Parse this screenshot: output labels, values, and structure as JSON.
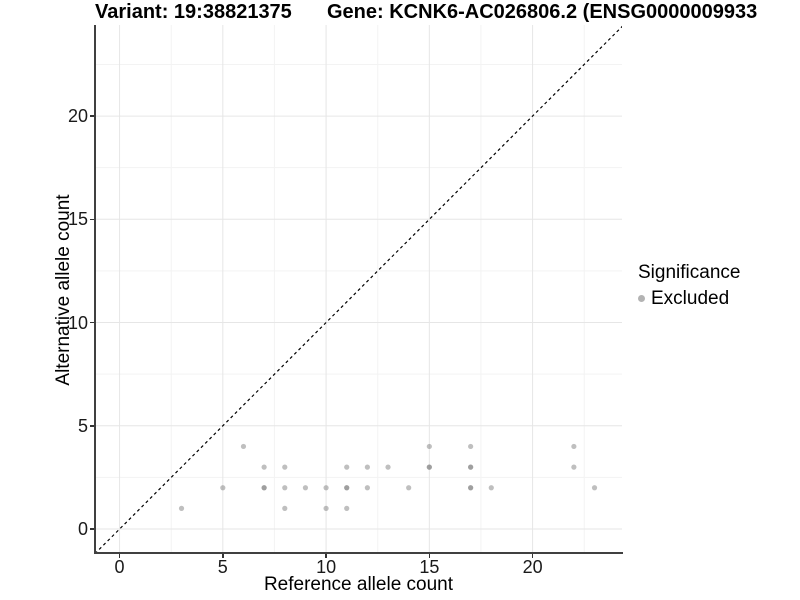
{
  "header": {
    "variant_title": "Variant: 19:38821375",
    "gene_title": "Gene: KCNK6-AC026806.2 (ENSG0000009933"
  },
  "chart_data": {
    "type": "scatter",
    "xlabel": "Reference allele count",
    "ylabel": "Alternative allele count",
    "xlim": [
      -1.19,
      24.33
    ],
    "ylim": [
      -1.16,
      24.41
    ],
    "x_ticks": [
      0,
      5,
      10,
      15,
      20
    ],
    "y_ticks": [
      0,
      5,
      10,
      15,
      20
    ],
    "x_minor_gridlines": [
      2.5,
      7.5,
      12.5,
      17.5,
      22.5
    ],
    "y_minor_gridlines": [
      2.5,
      7.5,
      12.5,
      17.5,
      22.5
    ],
    "grid": true,
    "identity_line": {
      "equation": "y = x",
      "style": "dashed",
      "color": "#000000"
    },
    "point_style": {
      "color": "#808080",
      "opacity": 0.5,
      "radius_px": 2.6
    },
    "points": [
      {
        "x": 3,
        "y": 1,
        "n": 1
      },
      {
        "x": 5,
        "y": 2,
        "n": 1
      },
      {
        "x": 6,
        "y": 4,
        "n": 1
      },
      {
        "x": 7,
        "y": 2,
        "n": 2
      },
      {
        "x": 7,
        "y": 3,
        "n": 1
      },
      {
        "x": 8,
        "y": 1,
        "n": 1
      },
      {
        "x": 8,
        "y": 2,
        "n": 1
      },
      {
        "x": 8,
        "y": 3,
        "n": 1
      },
      {
        "x": 9,
        "y": 2,
        "n": 1
      },
      {
        "x": 10,
        "y": 1,
        "n": 1
      },
      {
        "x": 10,
        "y": 2,
        "n": 1
      },
      {
        "x": 11,
        "y": 1,
        "n": 1
      },
      {
        "x": 11,
        "y": 2,
        "n": 2
      },
      {
        "x": 11,
        "y": 3,
        "n": 1
      },
      {
        "x": 12,
        "y": 2,
        "n": 1
      },
      {
        "x": 12,
        "y": 3,
        "n": 1
      },
      {
        "x": 13,
        "y": 3,
        "n": 1
      },
      {
        "x": 14,
        "y": 2,
        "n": 1
      },
      {
        "x": 15,
        "y": 3,
        "n": 2
      },
      {
        "x": 15,
        "y": 4,
        "n": 1
      },
      {
        "x": 17,
        "y": 2,
        "n": 2
      },
      {
        "x": 17,
        "y": 3,
        "n": 2
      },
      {
        "x": 17,
        "y": 4,
        "n": 1
      },
      {
        "x": 18,
        "y": 2,
        "n": 1
      },
      {
        "x": 22,
        "y": 3,
        "n": 1
      },
      {
        "x": 22,
        "y": 4,
        "n": 1
      },
      {
        "x": 23,
        "y": 2,
        "n": 1
      }
    ],
    "legend": {
      "position": "right",
      "title": "Significance",
      "items": [
        {
          "label": "Excluded",
          "color": "#b3b3b3"
        }
      ]
    }
  },
  "colors": {
    "grid_major": "#e6e6e6",
    "grid_minor": "#f3f3f3",
    "axis_line": "#404040",
    "tick_text": "#1a1a1a"
  }
}
